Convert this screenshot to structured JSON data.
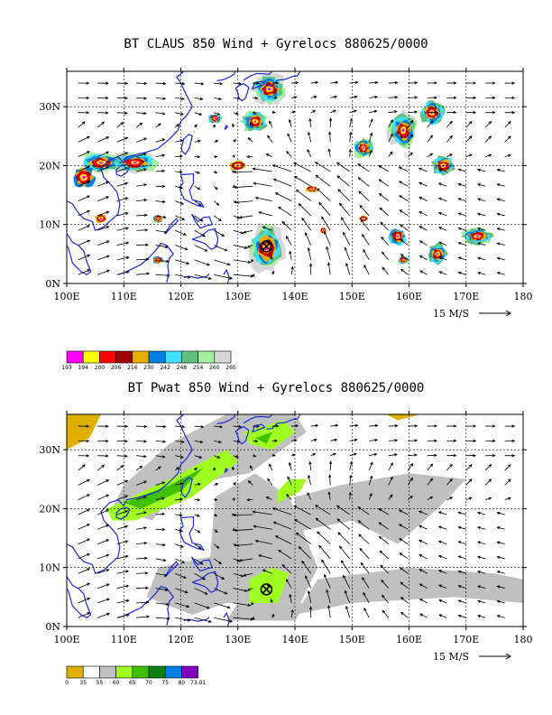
{
  "panels": [
    {
      "title": "BT CLAUS 850 Wind + Gyrelocs 880625/0000",
      "field": "claus",
      "legend": {
        "colors": [
          "#ff00ff",
          "#ffff00",
          "#ff0000",
          "#a00000",
          "#e6b000",
          "#0080e0",
          "#40e0ff",
          "#60c080",
          "#a0f0a0",
          "#d8d8d8"
        ],
        "labels": [
          "193",
          "194",
          "200",
          "206",
          "216",
          "230",
          "242",
          "248",
          "254",
          "260",
          "265"
        ]
      }
    },
    {
      "title": "BT Pwat 850 Wind + Gyrelocs 880625/0000",
      "field": "pwat",
      "legend": {
        "colors": [
          "#e0b000",
          "#ffffff",
          "#c0c0c0",
          "#a0ff20",
          "#40c000",
          "#108010",
          "#0080e0",
          "#8000c0"
        ],
        "labels": [
          "0",
          "35",
          "55",
          "60",
          "65",
          "70",
          "75",
          "80",
          "73.01"
        ]
      }
    }
  ],
  "axes": {
    "x_ticks": [
      "100E",
      "110E",
      "120E",
      "130E",
      "140E",
      "150E",
      "160E",
      "170E",
      "180"
    ],
    "y_ticks": [
      "30N",
      "20N",
      "10N",
      "0N"
    ]
  },
  "vector_scale": {
    "label": "15 M/S"
  },
  "gyre_location": {
    "lon": 135,
    "lat": 6.3
  }
}
